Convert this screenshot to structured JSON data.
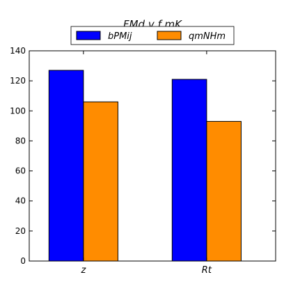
{
  "chart_data": {
    "type": "bar",
    "title": "FMd v f mK",
    "xlabel": "",
    "ylabel": "",
    "categories": [
      "z",
      "Rt"
    ],
    "series": [
      {
        "name": "bPMij",
        "values": [
          127,
          121
        ],
        "color": "#0000ff"
      },
      {
        "name": "qmNHm",
        "values": [
          106,
          93
        ],
        "color": "#ff8c00"
      }
    ],
    "ylim": [
      0,
      140
    ],
    "yticks": [
      0,
      20,
      40,
      60,
      80,
      100,
      120,
      140
    ],
    "grid": false,
    "legend_position": "top-center"
  }
}
